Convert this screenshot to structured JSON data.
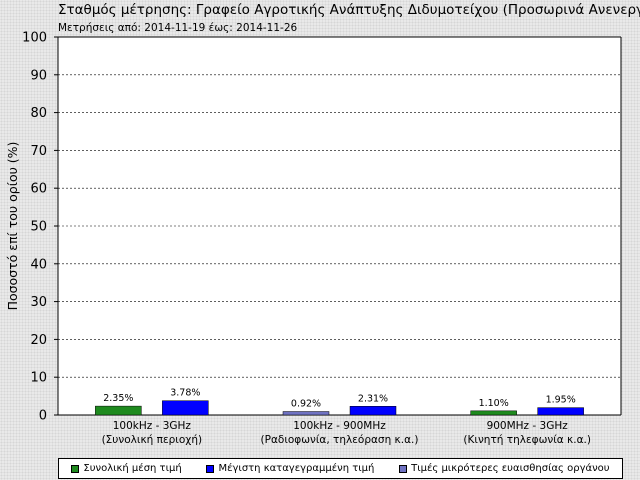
{
  "header": {
    "title": "Σταθμός μέτρησης: Γραφείο Αγροτικής Ανάπτυξης Διδυμοτείχου (Προσωρινά Ανενεργ",
    "subtitle": "Μετρήσεις από: 2014-11-19 έως: 2014-11-26"
  },
  "colors": {
    "average": "#1e8a1e",
    "maximum": "#0000ff",
    "below_sensitivity": "#6f72c2"
  },
  "legend": [
    {
      "label": "Συνολική μέση τιμή",
      "color": "#1e8a1e"
    },
    {
      "label": "Μέγιστη καταγεγραμμένη τιμή",
      "color": "#0000ff"
    },
    {
      "label": "Τιμές μικρότερες ευαισθησίας οργάνου",
      "color": "#6f72c2"
    }
  ],
  "chart_data": {
    "type": "bar",
    "title": "",
    "xlabel": "",
    "ylabel": "Ποσοστό επί του ορίου (%)",
    "ylim": [
      0,
      100
    ],
    "yticks": [
      0,
      10,
      20,
      30,
      40,
      50,
      60,
      70,
      80,
      90,
      100
    ],
    "grid": true,
    "legend_position": "bottom",
    "categories": [
      {
        "line1": "100kHz - 3GHz",
        "line2": "(Συνολική περιοχή)"
      },
      {
        "line1": "100kHz - 900MHz",
        "line2": "(Ραδιοφωνία, τηλεόραση κ.α.)"
      },
      {
        "line1": "900MHz - 3GHz",
        "line2": "(Κινητή τηλεφωνία κ.α.)"
      }
    ],
    "bars": [
      {
        "category": 0,
        "slot": 0,
        "series": "Συνολική μέση τιμή",
        "value": 2.35,
        "label": "2.35%",
        "color": "#1e8a1e"
      },
      {
        "category": 0,
        "slot": 1,
        "series": "Μέγιστη καταγεγραμμένη τιμή",
        "value": 3.78,
        "label": "3.78%",
        "color": "#0000ff"
      },
      {
        "category": 1,
        "slot": 0,
        "series": "Τιμές μικρότερες ευαισθησίας οργάνου",
        "value": 0.92,
        "label": "0.92%",
        "color": "#6f72c2"
      },
      {
        "category": 1,
        "slot": 1,
        "series": "Μέγιστη καταγεγραμμένη τιμή",
        "value": 2.31,
        "label": "2.31%",
        "color": "#0000ff"
      },
      {
        "category": 2,
        "slot": 0,
        "series": "Συνολική μέση τιμή",
        "value": 1.1,
        "label": "1.10%",
        "color": "#1e8a1e"
      },
      {
        "category": 2,
        "slot": 1,
        "series": "Μέγιστη καταγεγραμμένη τιμή",
        "value": 1.95,
        "label": "1.95%",
        "color": "#0000ff"
      }
    ]
  }
}
